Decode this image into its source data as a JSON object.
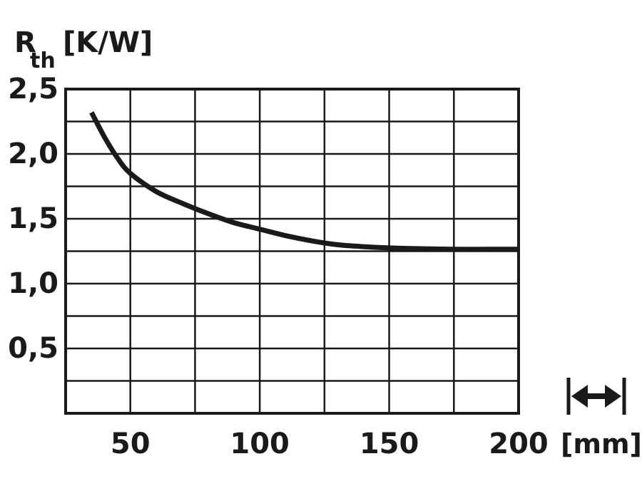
{
  "chart_data": {
    "type": "line",
    "ylabel": {
      "symbol": "R",
      "subscript": "th",
      "unit": "[K/W]"
    },
    "xlabel_unit": "[mm]",
    "x_ticks": [
      {
        "value": 50,
        "label": "50"
      },
      {
        "value": 100,
        "label": "100"
      },
      {
        "value": 150,
        "label": "150"
      },
      {
        "value": 200,
        "label": "200"
      }
    ],
    "y_ticks": [
      {
        "value": 0.5,
        "label": "0,5"
      },
      {
        "value": 1.0,
        "label": "1,0"
      },
      {
        "value": 1.5,
        "label": "1,5"
      },
      {
        "value": 2.0,
        "label": "2,0"
      },
      {
        "value": 2.5,
        "label": "2,5"
      }
    ],
    "xlim": [
      25,
      200
    ],
    "ylim": [
      0,
      2.5
    ],
    "grid": true,
    "x_grid_step": 25,
    "y_grid_step": 0.25,
    "length_icon": "double-arrow-icon",
    "series": [
      {
        "values": [
          [
            35,
            2.32
          ],
          [
            40,
            2.13
          ],
          [
            45,
            1.97
          ],
          [
            50,
            1.85
          ],
          [
            60,
            1.71
          ],
          [
            70,
            1.62
          ],
          [
            80,
            1.54
          ],
          [
            90,
            1.47
          ],
          [
            100,
            1.42
          ],
          [
            110,
            1.37
          ],
          [
            120,
            1.33
          ],
          [
            130,
            1.3
          ],
          [
            140,
            1.285
          ],
          [
            150,
            1.275
          ],
          [
            160,
            1.27
          ],
          [
            175,
            1.265
          ],
          [
            190,
            1.265
          ],
          [
            200,
            1.265
          ]
        ]
      }
    ]
  }
}
